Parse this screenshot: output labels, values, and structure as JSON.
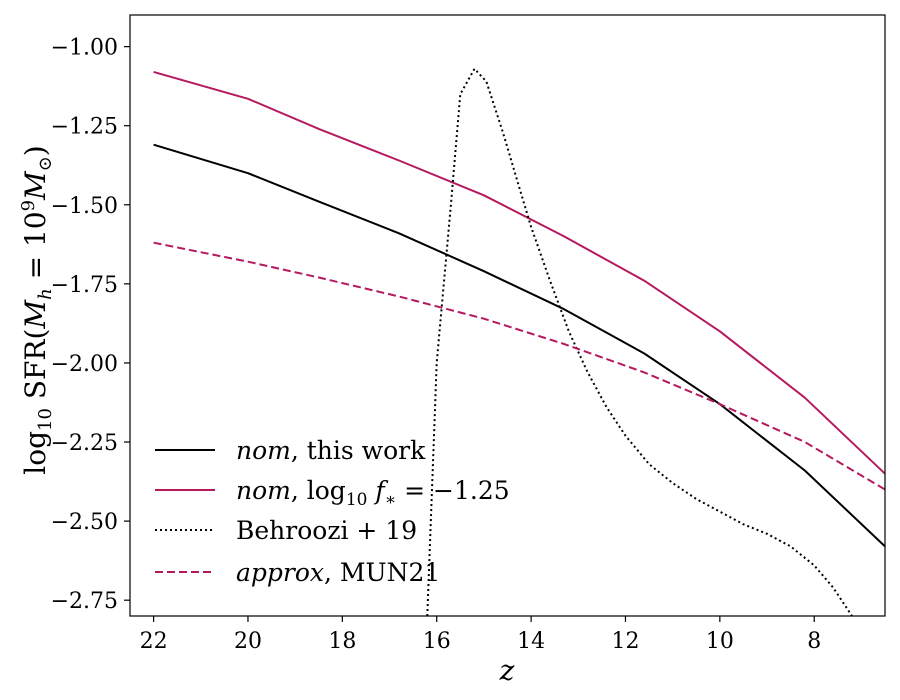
{
  "chart_data": {
    "type": "line",
    "title": "",
    "xlabel": "z",
    "ylabel": {
      "prefix": "log",
      "sub": "10",
      "main": " SFR(",
      "m": "M",
      "h": "h",
      "eq": " = 10",
      "sup": "9",
      "sun": "⊙",
      "close": ")"
    },
    "xlim": [
      22.5,
      6.5
    ],
    "ylim": [
      -2.8,
      -0.9
    ],
    "x_ticks": [
      22,
      20,
      18,
      16,
      14,
      12,
      10,
      8
    ],
    "y_ticks": [
      -1.0,
      -1.25,
      -1.5,
      -1.75,
      -2.0,
      -2.25,
      -2.5,
      -2.75
    ],
    "x_tick_labels": [
      "22",
      "20",
      "18",
      "16",
      "14",
      "12",
      "10",
      "8"
    ],
    "y_tick_labels": [
      "−1.00",
      "−1.25",
      "−1.50",
      "−1.75",
      "−2.00",
      "−2.25",
      "−2.50",
      "−2.75"
    ],
    "grid": false,
    "legend_position": "lower-left",
    "series": [
      {
        "name": "nom, this work",
        "legend": {
          "it": "nom",
          "rest": ", this work"
        },
        "color": "#000000",
        "dash": "solid",
        "x": [
          22,
          20,
          18.5,
          16.8,
          15,
          13.3,
          11.6,
          10,
          8.2,
          6.5
        ],
        "y": [
          -1.31,
          -1.4,
          -1.49,
          -1.59,
          -1.71,
          -1.83,
          -1.97,
          -2.13,
          -2.34,
          -2.58
        ]
      },
      {
        "name": "nom, log10 f* = -1.25",
        "legend": {
          "it": "nom",
          "rest": ", log",
          "sub": "10",
          "f": " f",
          "star": "∗",
          "tail": " = −1.25"
        },
        "color": "#b5195e",
        "dash": "solid",
        "x": [
          22,
          20,
          18.5,
          16.8,
          15,
          13.3,
          11.6,
          10,
          8.2,
          6.5
        ],
        "y": [
          -1.08,
          -1.165,
          -1.26,
          -1.36,
          -1.47,
          -1.6,
          -1.74,
          -1.9,
          -2.11,
          -2.35
        ]
      },
      {
        "name": "Behroozi + 19",
        "legend": {
          "it": "",
          "rest": "Behroozi + 19"
        },
        "color": "#000000",
        "dash": "dotted",
        "x": [
          16.2,
          16.0,
          15.7,
          15.5,
          15.2,
          14.95,
          14.6,
          14.3,
          14.0,
          13.6,
          13.2,
          12.8,
          12.4,
          12.0,
          11.5,
          11.0,
          10.5,
          10.0,
          9.5,
          9.0,
          8.5,
          8.0,
          7.6,
          7.2
        ],
        "y": [
          -2.8,
          -2.0,
          -1.5,
          -1.15,
          -1.07,
          -1.11,
          -1.27,
          -1.42,
          -1.57,
          -1.74,
          -1.9,
          -2.03,
          -2.14,
          -2.23,
          -2.32,
          -2.38,
          -2.43,
          -2.47,
          -2.51,
          -2.54,
          -2.58,
          -2.64,
          -2.71,
          -2.8
        ]
      },
      {
        "name": "approx, MUN21",
        "legend": {
          "it": "approx",
          "rest": ", MUN21"
        },
        "color": "#b5195e",
        "dash": "dashed",
        "x": [
          22,
          20,
          18.5,
          16.8,
          15,
          13.3,
          11.6,
          10,
          8.2,
          6.5
        ],
        "y": [
          -1.62,
          -1.68,
          -1.73,
          -1.79,
          -1.86,
          -1.94,
          -2.03,
          -2.13,
          -2.25,
          -2.4
        ]
      }
    ]
  }
}
